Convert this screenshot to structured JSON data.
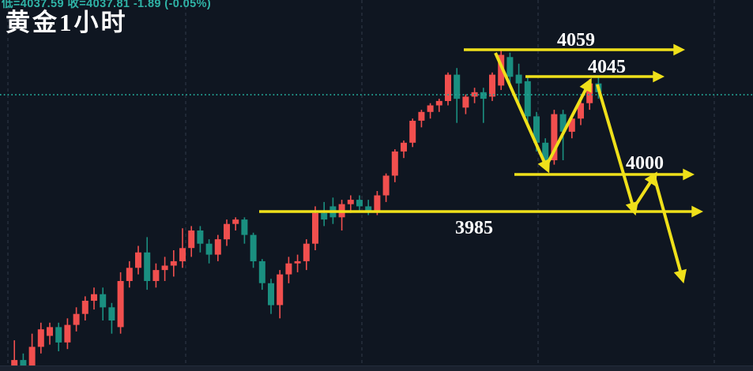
{
  "header": {
    "ohlc_line": "低=4037.59 收=4037.81 -1.89 (-0.05%)",
    "title": "黄金1小时"
  },
  "chart_data": {
    "type": "candlestick",
    "title": "黄金1小时",
    "instrument": "黄金",
    "timeframe": "1小时",
    "price_domain": [
      3912,
      4081
    ],
    "grid": {
      "vertical_dashed_lines": 5,
      "horizontal_lines": false
    },
    "last_price_line": {
      "value": 4037.81,
      "style": "dotted",
      "color": "#23a295"
    },
    "change": {
      "abs": "-1.89",
      "pct": "(-0.05%)",
      "close": "4037.81",
      "low": "4037.59"
    },
    "annotations": {
      "levels": [
        {
          "label": "4059",
          "value": 4059
        },
        {
          "label": "4045",
          "value": 4045
        },
        {
          "label": "4000",
          "value": 4000
        },
        {
          "label": "3985",
          "value": 3985
        }
      ],
      "projection": "zigzag-arrow-path: down from 4059 to 4000, up to 4045, down to 3985, up to 4000, down below 3985"
    },
    "colors": {
      "up": "#f14f4e",
      "down": "#1a8f80",
      "annotation": "#EFE01A",
      "label_text": "#ffffff",
      "background": "#0f1621"
    },
    "candles": [
      [
        3912,
        3926,
        3910,
        3917
      ],
      [
        3917,
        3920,
        3908,
        3912
      ],
      [
        3911,
        3929,
        3909,
        3923
      ],
      [
        3923,
        3934,
        3920,
        3931
      ],
      [
        3928,
        3934,
        3924,
        3932
      ],
      [
        3932,
        3934,
        3921,
        3925
      ],
      [
        3925,
        3936,
        3922,
        3933
      ],
      [
        3933,
        3941,
        3930,
        3938
      ],
      [
        3938,
        3946,
        3935,
        3944
      ],
      [
        3944,
        3950,
        3940,
        3947
      ],
      [
        3947,
        3950,
        3935,
        3941
      ],
      [
        3941,
        3943,
        3929,
        3935
      ],
      [
        3932,
        3957,
        3929,
        3953
      ],
      [
        3953,
        3962,
        3950,
        3959
      ],
      [
        3959,
        3969,
        3956,
        3966
      ],
      [
        3966,
        3973,
        3949,
        3953
      ],
      [
        3953,
        3961,
        3950,
        3958
      ],
      [
        3958,
        3964,
        3953,
        3960
      ],
      [
        3960,
        3967,
        3955,
        3962
      ],
      [
        3962,
        3977,
        3959,
        3968
      ],
      [
        3968,
        3978,
        3964,
        3976
      ],
      [
        3976,
        3978,
        3966,
        3970
      ],
      [
        3970,
        3972,
        3961,
        3965
      ],
      [
        3965,
        3974,
        3962,
        3972
      ],
      [
        3972,
        3981,
        3969,
        3979
      ],
      [
        3979,
        3982,
        3976,
        3981
      ],
      [
        3981,
        3982,
        3970,
        3974
      ],
      [
        3974,
        3975,
        3959,
        3962
      ],
      [
        3962,
        3963,
        3949,
        3952
      ],
      [
        3952,
        3954,
        3938,
        3942
      ],
      [
        3942,
        3958,
        3936,
        3956
      ],
      [
        3956,
        3964,
        3952,
        3961
      ],
      [
        3961,
        3965,
        3957,
        3962
      ],
      [
        3962,
        3972,
        3958,
        3970
      ],
      [
        3970,
        3987,
        3967,
        3984
      ],
      [
        3984,
        3989,
        3978,
        3981
      ],
      [
        3987,
        3991,
        3979,
        3982
      ],
      [
        3982,
        3990,
        3976,
        3988
      ],
      [
        3988,
        3992,
        3984,
        3990
      ],
      [
        3990,
        3992,
        3985,
        3987
      ],
      [
        3987,
        3990,
        3983,
        3985
      ],
      [
        3985,
        3994,
        3983,
        3992
      ],
      [
        3992,
        4002,
        3989,
        4001
      ],
      [
        4001,
        4013,
        3998,
        4012
      ],
      [
        4012,
        4017,
        4009,
        4016
      ],
      [
        4016,
        4027,
        4014,
        4026
      ],
      [
        4026,
        4031,
        4023,
        4030
      ],
      [
        4030,
        4034,
        4027,
        4033
      ],
      [
        4033,
        4036,
        4030,
        4035
      ],
      [
        4035,
        4048,
        4033,
        4047
      ],
      [
        4047,
        4050,
        4025,
        4036
      ],
      [
        4032,
        4038,
        4029,
        4037
      ],
      [
        4037,
        4041,
        4034,
        4039
      ],
      [
        4039,
        4041,
        4025,
        4036
      ],
      [
        4037,
        4048,
        4035,
        4047
      ],
      [
        4042,
        4058,
        4040,
        4056
      ],
      [
        4055,
        4057,
        4043,
        4046
      ],
      [
        4047,
        4052,
        4032,
        4043
      ],
      [
        4044,
        4046,
        4024,
        4028
      ],
      [
        4028,
        4030,
        4012,
        4016
      ],
      [
        4016,
        4018,
        4004,
        4008
      ],
      [
        4008,
        4031,
        4006,
        4029
      ],
      [
        4029,
        4031,
        4008,
        4021
      ],
      [
        4021,
        4029,
        4018,
        4027
      ],
      [
        4027,
        4036,
        4024,
        4034
      ],
      [
        4034,
        4045,
        4031,
        4043
      ],
      [
        4043,
        4046,
        4036,
        4039
      ]
    ]
  }
}
